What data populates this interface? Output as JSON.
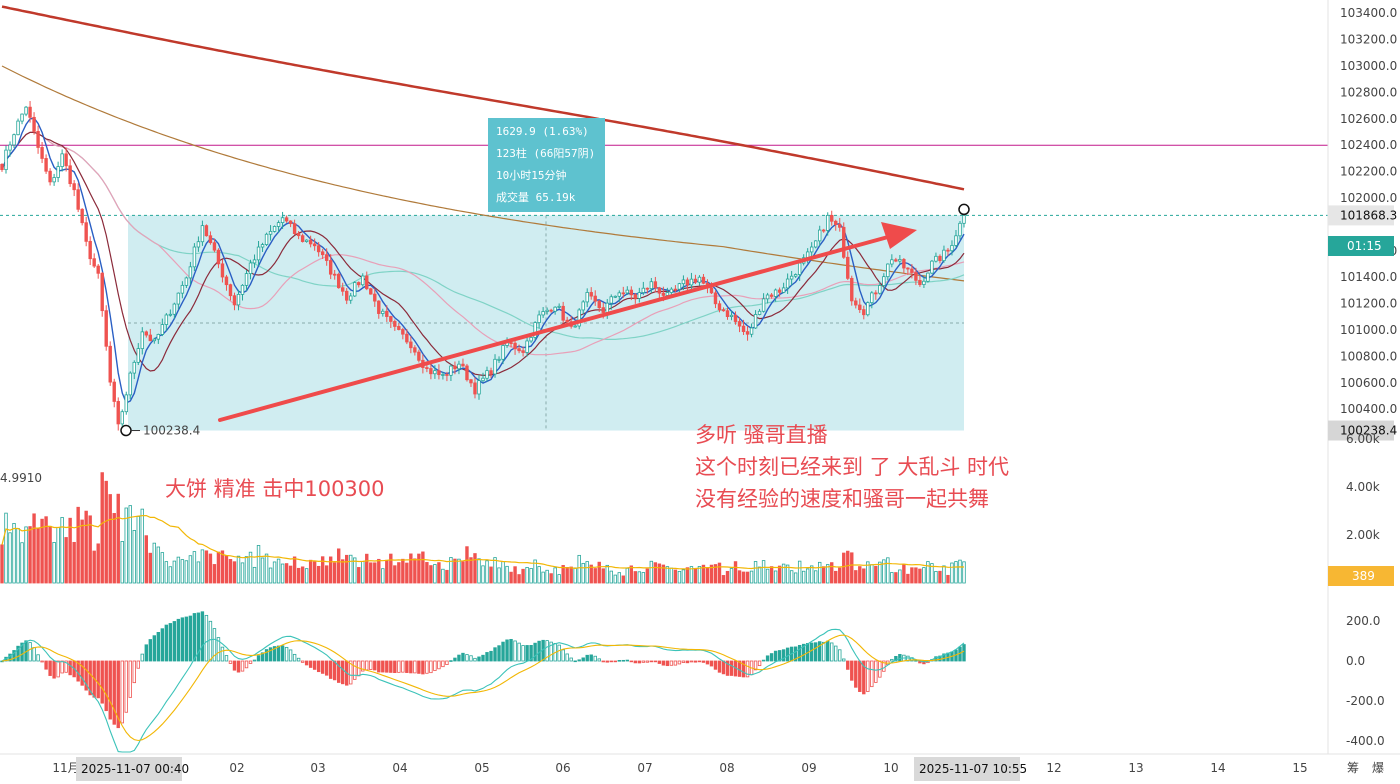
{
  "colors": {
    "up": "#26a69a",
    "down": "#ef5350",
    "ma_long": "#c0392b",
    "ma_mid": "#b07a3a",
    "ma_teal": "#7fd3c6",
    "ma_pink": "#e8a0b8",
    "ma_navy": "#2a5fc4",
    "ma_maroon": "#8b2a3a",
    "hline": "#c2188b",
    "range_box": "#b7e3ea",
    "tooltip": "#5ec2cf",
    "arrow": "#ef4b4b",
    "annotation": "#e84c53",
    "vol_avg": "#f2b705",
    "macd_dif": "#3cc3b9",
    "macd_dea": "#f2b705"
  },
  "price_axis": {
    "min": 100000,
    "max": 103500,
    "ticks": [
      "103400.0",
      "103200.0",
      "103000.0",
      "102800.0",
      "102600.0",
      "102400.0",
      "102200.0",
      "102000.0",
      "101600.0",
      "101400.0",
      "101200.0",
      "101000.0",
      "100800.0",
      "100600.0",
      "100400.0"
    ],
    "current_price_tag": "101868.3",
    "countdown_tag": "01:15",
    "low_tag": "100238.4"
  },
  "volume_axis": {
    "ticks": [
      "6.00k",
      "4.00k",
      "2.00k"
    ],
    "current_tag": "389",
    "left_value": "4.9910"
  },
  "macd_axis": {
    "ticks": [
      "200.0",
      "0.0",
      "-200.0",
      "-400.0"
    ]
  },
  "time_axis": {
    "labels": [
      "11月",
      "02",
      "03",
      "04",
      "05",
      "06",
      "07",
      "08",
      "09",
      "10",
      "12",
      "13",
      "14",
      "15"
    ],
    "start_tag": "2025-11-07 00:40",
    "end_tag": "2025-11-07 10:55",
    "corner_labels": [
      "筹",
      "爆"
    ]
  },
  "measure_tooltip": {
    "line1": "1629.9 (1.63%)",
    "line2": "123柱 (66阳57阴)",
    "line3": "10小时15分钟",
    "line4": "成交量 65.19k"
  },
  "low_marker_label": "100238.4",
  "annotations": {
    "left_text": "大饼 精准 击中100300",
    "right_line1": "多听 骚哥直播",
    "right_line2": "这个时刻已经来到 了 大乱斗 时代",
    "right_line3": "没有经验的速度和骚哥一起共舞"
  },
  "chart_data": {
    "type": "candlestick",
    "symbol_interval": "5m",
    "y_range": [
      100000,
      103500
    ],
    "horizontal_line": 102400,
    "current_price": 101868.3,
    "measured_range": {
      "low": 100238.4,
      "high": 101868.3,
      "change": 1629.9,
      "change_pct": 1.63,
      "bars": 123
    },
    "keypoints": [
      [
        0,
        102250
      ],
      [
        3,
        102500
      ],
      [
        6,
        102700
      ],
      [
        9,
        102380
      ],
      [
        12,
        102100
      ],
      [
        15,
        102320
      ],
      [
        18,
        102050
      ],
      [
        21,
        101650
      ],
      [
        24,
        101400
      ],
      [
        27,
        100600
      ],
      [
        29,
        100260
      ],
      [
        32,
        100650
      ],
      [
        35,
        101000
      ],
      [
        38,
        100900
      ],
      [
        42,
        101150
      ],
      [
        46,
        101400
      ],
      [
        50,
        101800
      ],
      [
        54,
        101500
      ],
      [
        58,
        101200
      ],
      [
        62,
        101500
      ],
      [
        66,
        101700
      ],
      [
        70,
        101850
      ],
      [
        74,
        101700
      ],
      [
        78,
        101650
      ],
      [
        82,
        101450
      ],
      [
        86,
        101250
      ],
      [
        90,
        101400
      ],
      [
        94,
        101150
      ],
      [
        98,
        101000
      ],
      [
        102,
        100900
      ],
      [
        106,
        100700
      ],
      [
        110,
        100650
      ],
      [
        114,
        100750
      ],
      [
        118,
        100550
      ],
      [
        122,
        100700
      ],
      [
        126,
        100900
      ],
      [
        130,
        100850
      ],
      [
        134,
        101100
      ],
      [
        138,
        101200
      ],
      [
        142,
        101000
      ],
      [
        146,
        101250
      ],
      [
        150,
        101150
      ],
      [
        154,
        101300
      ],
      [
        158,
        101250
      ],
      [
        162,
        101350
      ],
      [
        166,
        101250
      ],
      [
        170,
        101350
      ],
      [
        174,
        101400
      ],
      [
        178,
        101200
      ],
      [
        182,
        101100
      ],
      [
        186,
        100950
      ],
      [
        190,
        101250
      ],
      [
        194,
        101300
      ],
      [
        198,
        101450
      ],
      [
        202,
        101600
      ],
      [
        206,
        101850
      ],
      [
        209,
        101750
      ],
      [
        212,
        101250
      ],
      [
        215,
        101150
      ],
      [
        218,
        101300
      ],
      [
        222,
        101550
      ],
      [
        226,
        101450
      ],
      [
        229,
        101350
      ],
      [
        232,
        101500
      ],
      [
        236,
        101600
      ],
      [
        240,
        101868
      ]
    ]
  }
}
